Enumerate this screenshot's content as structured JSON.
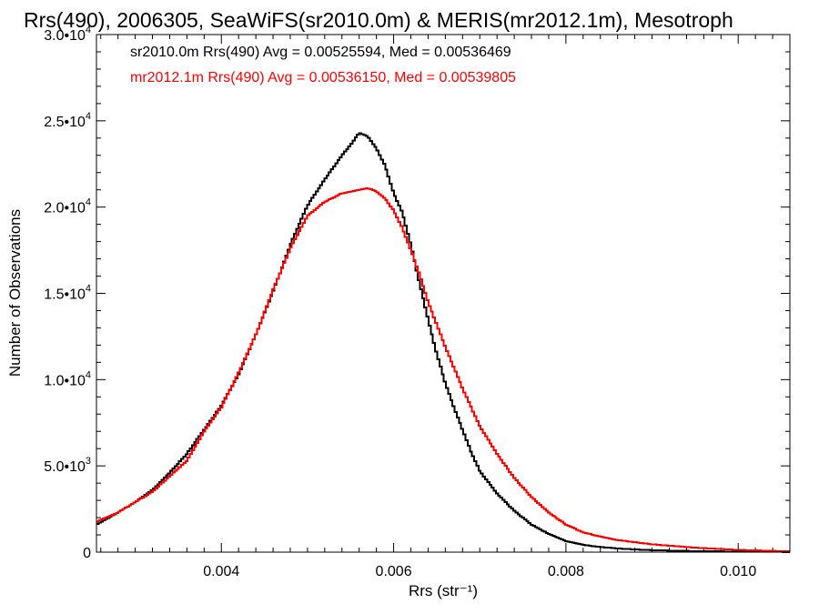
{
  "chart_data": {
    "type": "line",
    "title": "Rrs(490), 2006305, SeaWiFS(sr2010.0m) & MERIS(mr2012.1m), Mesotroph",
    "xlabel": "Rrs (str⁻¹)",
    "ylabel": "Number of Observations",
    "xlim": [
      0.00255,
      0.0106
    ],
    "ylim": [
      0,
      30000
    ],
    "x_ticks": [
      0.004,
      0.006,
      0.008,
      0.01
    ],
    "x_tick_labels": [
      "0.004",
      "0.006",
      "0.008",
      "0.010"
    ],
    "y_ticks": [
      {
        "value": 0,
        "mantissa": "0",
        "exp": ""
      },
      {
        "value": 5000,
        "mantissa": "5.0•10",
        "exp": "3"
      },
      {
        "value": 10000,
        "mantissa": "1.0•10",
        "exp": "4"
      },
      {
        "value": 15000,
        "mantissa": "1.5•10",
        "exp": "4"
      },
      {
        "value": 20000,
        "mantissa": "2.0•10",
        "exp": "4"
      },
      {
        "value": 25000,
        "mantissa": "2.5•10",
        "exp": "4"
      },
      {
        "value": 30000,
        "mantissa": "3.0•10",
        "exp": "4"
      }
    ],
    "grid": false,
    "legend_position": "top-left",
    "series": [
      {
        "name": "sr2010.0m Rrs(490) Avg = 0.00525594, Med = 0.00536469",
        "color": "#000000",
        "x": [
          0.00255,
          0.0028,
          0.003,
          0.0032,
          0.0034,
          0.0036,
          0.0038,
          0.004,
          0.0042,
          0.0044,
          0.0046,
          0.0048,
          0.005,
          0.0052,
          0.0054,
          0.0055,
          0.0056,
          0.0057,
          0.0058,
          0.0059,
          0.006,
          0.0061,
          0.0062,
          0.0063,
          0.0064,
          0.0065,
          0.0066,
          0.0067,
          0.0068,
          0.0069,
          0.007,
          0.0072,
          0.0074,
          0.0076,
          0.0078,
          0.008,
          0.0082,
          0.0084,
          0.0086,
          0.009,
          0.0095,
          0.01,
          0.0106
        ],
        "y": [
          1600,
          2300,
          2900,
          3600,
          4600,
          5700,
          7100,
          8500,
          10300,
          12600,
          15100,
          17800,
          20100,
          21600,
          23000,
          23600,
          24300,
          24100,
          23400,
          22400,
          20800,
          19700,
          17800,
          15600,
          13500,
          11500,
          9800,
          8400,
          7100,
          5800,
          4700,
          3400,
          2400,
          1600,
          1050,
          650,
          420,
          300,
          210,
          110,
          60,
          30,
          10
        ]
      },
      {
        "name": "mr2012.1m Rrs(490) Avg = 0.00536150, Med = 0.00539805",
        "color": "#ff0000",
        "x": [
          0.00255,
          0.0028,
          0.003,
          0.0032,
          0.0034,
          0.0036,
          0.0038,
          0.004,
          0.0042,
          0.0044,
          0.0046,
          0.0048,
          0.005,
          0.0052,
          0.0054,
          0.0055,
          0.0056,
          0.0057,
          0.0058,
          0.0059,
          0.006,
          0.0061,
          0.0062,
          0.0063,
          0.0064,
          0.0065,
          0.0066,
          0.0067,
          0.0068,
          0.0069,
          0.007,
          0.0072,
          0.0074,
          0.0076,
          0.0078,
          0.008,
          0.0082,
          0.0084,
          0.0086,
          0.009,
          0.0095,
          0.01,
          0.0106
        ],
        "y": [
          1750,
          2300,
          2900,
          3500,
          4400,
          5300,
          7000,
          8400,
          10400,
          12600,
          15200,
          17600,
          19500,
          20300,
          20800,
          20900,
          21000,
          21100,
          20900,
          20500,
          19800,
          18800,
          17500,
          16100,
          14500,
          13200,
          11900,
          10700,
          9500,
          8400,
          7300,
          5700,
          4300,
          3200,
          2300,
          1600,
          1150,
          900,
          700,
          450,
          260,
          130,
          40
        ]
      }
    ]
  }
}
